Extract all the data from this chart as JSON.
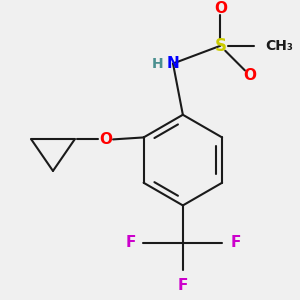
{
  "background_color": "#f0f0f0",
  "bond_color": "#1a1a1a",
  "bond_width": 1.5,
  "atom_colors": {
    "N": "#0000ff",
    "O": "#ff0000",
    "S": "#cccc00",
    "F": "#cc00cc",
    "H": "#4a9090",
    "C": "#1a1a1a"
  },
  "font_size": 11
}
